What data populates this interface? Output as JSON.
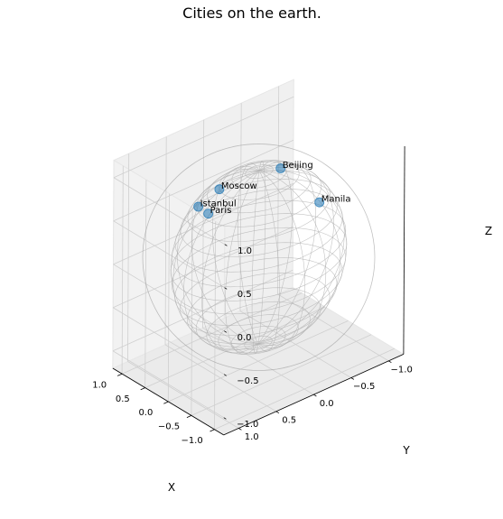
{
  "chart_data": {
    "type": "scatter",
    "projection": "3d",
    "title": "Cities on the earth.",
    "xlabel": "X",
    "ylabel": "Y",
    "zlabel": "Z",
    "xlim": [
      -1.2,
      1.2
    ],
    "ylim": [
      -1.2,
      1.2
    ],
    "zlim": [
      -1.2,
      1.2
    ],
    "xticks": [
      "−1.0",
      "−0.5",
      "0.0",
      "0.5",
      "1.0"
    ],
    "yticks": [
      "−1.0",
      "−0.5",
      "0.0",
      "0.5",
      "1.0"
    ],
    "zticks": [
      "−1.0",
      "−0.5",
      "0.0",
      "0.5",
      "1.0"
    ],
    "grid": true,
    "wireframe": "unit sphere",
    "marker_color": "#1f77b4",
    "points": [
      {
        "label": "Paris",
        "x": 0.66,
        "y": 0.03,
        "z": 0.75
      },
      {
        "label": "Moscow",
        "x": 0.32,
        "y": 0.34,
        "z": 0.8
      },
      {
        "label": "Istanbul",
        "x": 0.57,
        "y": 0.39,
        "z": 0.68
      },
      {
        "label": "Beijing",
        "x": -0.59,
        "y": 0.49,
        "z": 0.64
      },
      {
        "label": "Manila",
        "x": -0.95,
        "y": 0.23,
        "z": 0.19
      }
    ]
  }
}
